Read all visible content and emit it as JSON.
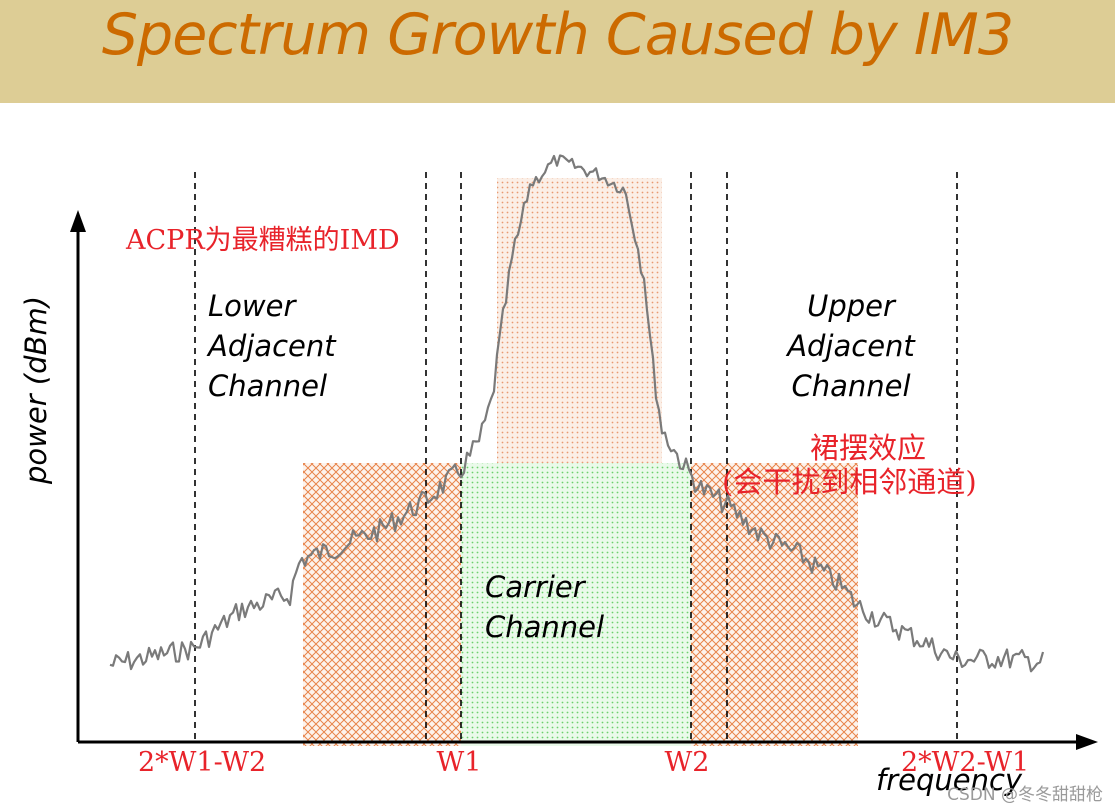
{
  "title": "Spectrum Growth Caused by IM3",
  "y_axis_label": "power (dBm)",
  "x_axis_label": "frequency",
  "annotation_acpr": "ACPR为最糟糕的IMD",
  "annotation_skirt_1": "裙摆效应",
  "annotation_skirt_2": "(会干扰到相邻通道)",
  "region_labels": {
    "lower": [
      "Lower",
      "Adjacent",
      "Channel"
    ],
    "upper": [
      "Upper",
      "Adjacent",
      "Channel"
    ],
    "carrier": [
      "Carrier",
      "Channel"
    ]
  },
  "tick_labels": {
    "lower_im3": "2*W1-W2",
    "w1": "W1",
    "w2": "W2",
    "upper_im3": "2*W2-W1"
  },
  "watermark": "CSDN @冬冬甜甜枪",
  "colors": {
    "title_bar": "#ddcd95",
    "title_text": "#cc6a00",
    "annotation": "#e8232a",
    "hatch": "#e8844a",
    "carrier_fill": "#7fd87f",
    "spectrum_line": "#7a7a7a"
  }
}
